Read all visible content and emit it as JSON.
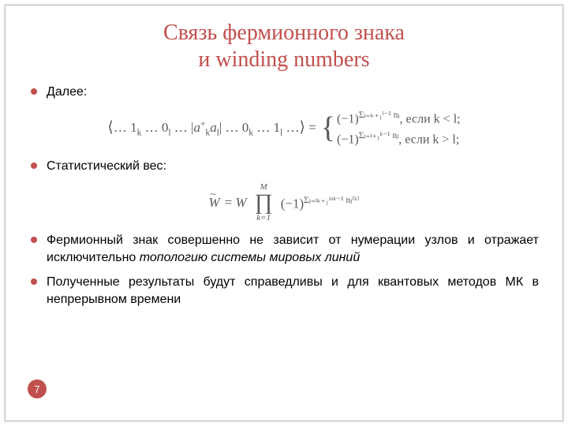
{
  "colors": {
    "accent": "#c0504d",
    "math_text": "#595959",
    "body_text": "#000000",
    "border": "#bfbfbf",
    "background": "#ffffff"
  },
  "title": {
    "line1": "Связь фермионного знака",
    "line2": "и winding numbers",
    "fontsize": 28,
    "color": "#c0504d"
  },
  "bullets": {
    "item1": "Далее:",
    "item2": "Статистический вес:",
    "item3_prefix": "Фермионный знак совершенно не зависит от нумерации узлов и отражает исключительно ",
    "item3_emph": "топологию системы мировых линий",
    "item4": "Полученные результаты будут справедливы и для квантовых методов МК в непрерывном времени"
  },
  "equation1": {
    "lhs_display": "⟨… 1ₖ … 0ₗ … |aₖ⁺aₗ| … 0ₖ … 1ₗ …⟩ =",
    "lhs_bra": "⟨… 1",
    "lhs_k": "k",
    "lhs_mid1": " … 0",
    "lhs_l": "l",
    "lhs_mid2": " … |a",
    "lhs_plus": "+",
    "lhs_al": "a",
    "lhs_mid3": "| … 0",
    "lhs_mid4": " … 1",
    "lhs_close": " …⟩ =",
    "case1_base": "(−1)",
    "case1_exp": "Σⱼ₌ₖ₊₁ˡ⁻¹ nⱼ",
    "case1_cond": ",  если k < l;",
    "case2_base": "(−1)",
    "case2_exp": "Σⱼ₌ₗ₊₁ᵏ⁻¹ nⱼ",
    "case2_cond": ",  если k > l;"
  },
  "equation2": {
    "lhs_W": "W",
    "eq": " = W ",
    "prod_top": "M",
    "prod_sym": "∏",
    "prod_bot": "k=1",
    "factor_base": "(−1)",
    "factor_exp": "Σⱼ₌ₗₖ₊₁ᵐᵏ⁻¹ nⱼ⁽ᵏ⁾"
  },
  "page_number": "7",
  "typography": {
    "body_fontsize": 16,
    "math_fontsize": 17,
    "exp_fontsize": 11.5
  }
}
